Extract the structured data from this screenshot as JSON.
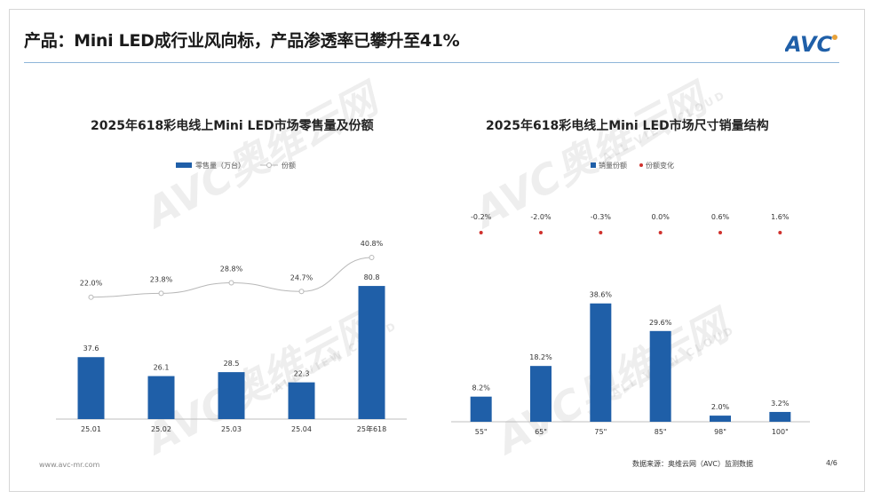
{
  "header": {
    "title": "产品：Mini LED成行业风向标，产品渗透率已攀升至41%",
    "logo_text": "AVC"
  },
  "watermark": {
    "text": "AVC奥维云网",
    "sub": "ALL VIEW CLOUD"
  },
  "colors": {
    "bar": "#1f5fa8",
    "line": "#b8b8b8",
    "dot": "#d0312d",
    "rule": "#8fb6d9"
  },
  "chart_data": [
    {
      "type": "bar",
      "title": "2025年618彩电线上Mini LED市场零售量及份额",
      "legend": [
        "零售量（万台）",
        "份额"
      ],
      "categories": [
        "25.01",
        "25.02",
        "25.03",
        "25.04",
        "25年618"
      ],
      "series": [
        {
          "name": "零售量（万台）",
          "type": "bar",
          "values": [
            37.6,
            26.1,
            28.5,
            22.3,
            80.8
          ],
          "labels": [
            "37.6",
            "26.1",
            "28.5",
            "22.3",
            "80.8"
          ]
        },
        {
          "name": "份额",
          "type": "line",
          "values": [
            22.0,
            23.8,
            28.8,
            24.7,
            40.8
          ],
          "labels": [
            "22.0%",
            "23.8%",
            "28.8%",
            "24.7%",
            "40.8%"
          ]
        }
      ],
      "ylim": [
        0,
        90
      ],
      "y2lim": [
        0,
        45
      ]
    },
    {
      "type": "bar",
      "title": "2025年618彩电线上Mini LED市场尺寸销量结构",
      "legend": [
        "销量份额",
        "份额变化"
      ],
      "categories": [
        "55\"",
        "65\"",
        "75\"",
        "85\"",
        "98\"",
        "100\""
      ],
      "series": [
        {
          "name": "销量份额",
          "type": "bar",
          "values": [
            8.2,
            18.2,
            38.6,
            29.6,
            2.0,
            3.2
          ],
          "labels": [
            "8.2%",
            "18.2%",
            "38.6%",
            "29.6%",
            "2.0%",
            "3.2%"
          ]
        },
        {
          "name": "份额变化",
          "type": "scatter",
          "values": [
            -0.2,
            -2.0,
            -0.3,
            0.0,
            0.6,
            1.6
          ],
          "labels": [
            "-0.2%",
            "-2.0%",
            "-0.3%",
            "0.0%",
            "0.6%",
            "1.6%"
          ]
        }
      ],
      "ylim": [
        0,
        42
      ]
    }
  ],
  "footer": {
    "website": "www.avc-mr.com",
    "source": "数据来源：奥维云网（AVC）监测数据",
    "page": "4/6"
  }
}
